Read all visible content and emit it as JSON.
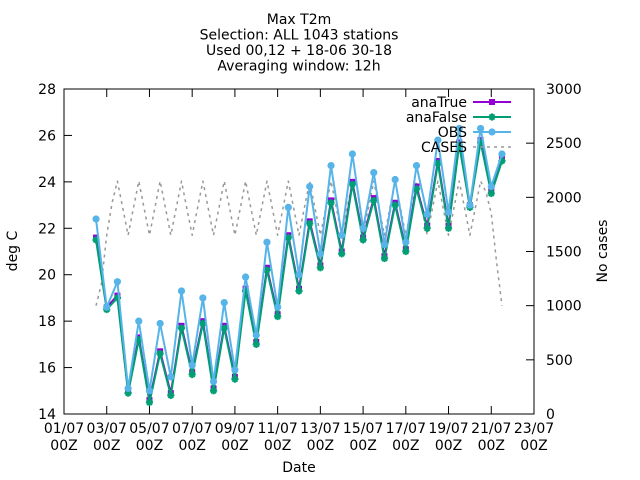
{
  "chart_data": {
    "type": "line",
    "title_lines": [
      "Max T2m",
      "Selection: ALL    1043 stations",
      "Used 00,12 + 18-06 30-18",
      "Averaging window: 12h"
    ],
    "xlabel": "Date",
    "ylabel": "deg C",
    "y2label": "No cases",
    "ylim": [
      14,
      28
    ],
    "yticks": [
      14,
      16,
      18,
      20,
      22,
      24,
      26,
      28
    ],
    "y2lim": [
      0,
      3000
    ],
    "y2ticks": [
      0,
      500,
      1000,
      1500,
      2000,
      2500,
      3000
    ],
    "xlim": [
      0,
      22
    ],
    "xticks": [
      {
        "x": 0,
        "l1": "01/07",
        "l2": "00Z"
      },
      {
        "x": 2,
        "l1": "03/07",
        "l2": "00Z"
      },
      {
        "x": 4,
        "l1": "05/07",
        "l2": "00Z"
      },
      {
        "x": 6,
        "l1": "07/07",
        "l2": "00Z"
      },
      {
        "x": 8,
        "l1": "09/07",
        "l2": "00Z"
      },
      {
        "x": 10,
        "l1": "11/07",
        "l2": "00Z"
      },
      {
        "x": 12,
        "l1": "13/07",
        "l2": "00Z"
      },
      {
        "x": 14,
        "l1": "15/07",
        "l2": "00Z"
      },
      {
        "x": 16,
        "l1": "17/07",
        "l2": "00Z"
      },
      {
        "x": 18,
        "l1": "19/07",
        "l2": "00Z"
      },
      {
        "x": 20,
        "l1": "21/07",
        "l2": "00Z"
      },
      {
        "x": 22,
        "l1": "23/07",
        "l2": "00Z"
      }
    ],
    "x": [
      1.5,
      2.0,
      2.5,
      3.0,
      3.5,
      4.0,
      4.5,
      5.0,
      5.5,
      6.0,
      6.5,
      7.0,
      7.5,
      8.0,
      8.5,
      9.0,
      9.5,
      10.0,
      10.5,
      11.0,
      11.5,
      12.0,
      12.5,
      13.0,
      13.5,
      14.0,
      14.5,
      15.0,
      15.5,
      16.0,
      16.5,
      17.0,
      17.5,
      18.0,
      18.5,
      19.0,
      19.5,
      20.0,
      20.5
    ],
    "legend": "top-right",
    "grid": false,
    "series": [
      {
        "name": "anaTrue",
        "axis": "y",
        "color": "#9400d3",
        "dash": "",
        "marker": "square",
        "values": [
          21.6,
          18.6,
          19.1,
          15.0,
          17.3,
          14.6,
          16.7,
          14.9,
          17.8,
          15.8,
          18.0,
          15.1,
          17.8,
          15.6,
          19.4,
          17.1,
          20.3,
          18.3,
          21.7,
          19.4,
          22.3,
          20.4,
          23.2,
          21.0,
          24.0,
          21.6,
          23.3,
          20.8,
          23.1,
          21.1,
          23.8,
          22.1,
          24.9,
          22.1,
          25.7,
          23.0,
          25.8,
          23.6,
          25.0
        ]
      },
      {
        "name": "anaFalse",
        "axis": "y",
        "color": "#009e73",
        "dash": "",
        "marker": "star",
        "values": [
          21.5,
          18.5,
          19.0,
          14.9,
          17.2,
          14.5,
          16.6,
          14.8,
          17.7,
          15.7,
          17.9,
          15.0,
          17.7,
          15.5,
          19.3,
          17.0,
          20.2,
          18.2,
          21.6,
          19.3,
          22.2,
          20.3,
          23.1,
          20.9,
          23.9,
          21.5,
          23.2,
          20.7,
          23.0,
          21.0,
          23.7,
          22.0,
          24.8,
          22.0,
          25.6,
          22.9,
          25.7,
          23.5,
          24.9
        ]
      },
      {
        "name": "OBS",
        "axis": "y",
        "color": "#56b4e9",
        "dash": "",
        "marker": "circle",
        "values": [
          22.4,
          18.6,
          19.7,
          15.1,
          18.0,
          15.0,
          17.9,
          15.6,
          19.3,
          16.1,
          19.0,
          15.4,
          18.8,
          15.9,
          19.9,
          17.4,
          21.4,
          18.6,
          22.9,
          20.0,
          23.8,
          20.9,
          24.7,
          21.7,
          25.2,
          22.0,
          24.4,
          21.3,
          24.1,
          21.4,
          24.7,
          22.6,
          25.8,
          22.7,
          26.3,
          23.0,
          26.3,
          23.8,
          25.2
        ]
      },
      {
        "name": "CASES",
        "axis": "y2",
        "color": "#999999",
        "dash": "3,4",
        "marker": "none",
        "x": [
          1.5,
          1.75,
          2.0,
          2.25,
          2.5,
          2.75,
          3.0,
          3.25,
          3.5,
          3.75,
          4.0,
          4.25,
          4.5,
          4.75,
          5.0,
          5.25,
          5.5,
          5.75,
          6.0,
          6.25,
          6.5,
          6.75,
          7.0,
          7.25,
          7.5,
          7.75,
          8.0,
          8.25,
          8.5,
          8.75,
          9.0,
          9.25,
          9.5,
          9.75,
          10.0,
          10.25,
          10.5,
          10.75,
          11.0,
          11.25,
          11.5,
          11.75,
          12.0,
          12.25,
          12.5,
          12.75,
          13.0,
          13.25,
          13.5,
          13.75,
          14.0,
          14.25,
          14.5,
          14.75,
          15.0,
          15.25,
          15.5,
          15.75,
          16.0,
          16.25,
          16.5,
          16.75,
          17.0,
          17.25,
          17.5,
          17.75,
          18.0,
          18.25,
          18.5,
          18.75,
          19.0,
          19.25,
          19.5,
          19.75,
          20.0,
          20.25,
          20.5
        ],
        "values": [
          1000,
          1200,
          1650,
          1950,
          2150,
          1900,
          1650,
          1900,
          2150,
          1900,
          1650,
          1900,
          2150,
          1900,
          1650,
          1900,
          2150,
          1900,
          1650,
          1900,
          2150,
          1900,
          1650,
          1900,
          2150,
          1900,
          1650,
          1900,
          2150,
          1900,
          1650,
          1900,
          2150,
          1900,
          1650,
          1900,
          2150,
          1900,
          1650,
          1900,
          2150,
          1900,
          1650,
          1900,
          2150,
          1900,
          1650,
          1900,
          2150,
          1900,
          1650,
          1900,
          2150,
          1900,
          1650,
          1900,
          2150,
          1900,
          1650,
          1900,
          2150,
          1900,
          1650,
          1900,
          2150,
          1900,
          1650,
          1900,
          2150,
          1900,
          1650,
          1900,
          2150,
          2050,
          1850,
          1400,
          1000
        ]
      }
    ]
  }
}
